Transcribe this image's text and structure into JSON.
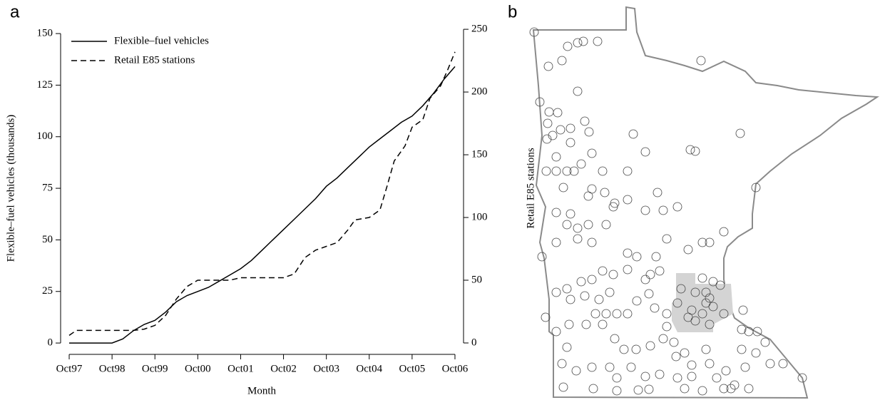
{
  "panel_labels": [
    "a",
    "b"
  ],
  "chart_data": {
    "type": "line",
    "x_label": "Month",
    "y_label": "Flexible–fuel vehicles (thousands)",
    "y2_label": "Retail E85 stations",
    "xlim": [
      -2.4,
      110.4
    ],
    "xticks": [
      {
        "value": 0,
        "label": "Oct97"
      },
      {
        "value": 12,
        "label": "Oct98"
      },
      {
        "value": 24,
        "label": "Oct99"
      },
      {
        "value": 36,
        "label": "Oct00"
      },
      {
        "value": 48,
        "label": "Oct01"
      },
      {
        "value": 60,
        "label": "Oct02"
      },
      {
        "value": 72,
        "label": "Oct03"
      },
      {
        "value": 84,
        "label": "Oct04"
      },
      {
        "value": 96,
        "label": "Oct05"
      },
      {
        "value": 108,
        "label": "Oct06"
      }
    ],
    "ylim": [
      -5.5,
      155.9
    ],
    "yticks": [
      0,
      25,
      50,
      75,
      100,
      125,
      150
    ],
    "y2lim": [
      -9.1,
      256.3
    ],
    "y2ticks": [
      0,
      50,
      100,
      150,
      200,
      250
    ],
    "legend": "top-left",
    "series": [
      {
        "name": "Flexible–fuel vehicles",
        "color": "#000000",
        "style": "solid",
        "x": [
          0,
          3,
          6,
          9,
          12,
          15,
          18,
          21,
          24,
          27,
          30,
          33,
          36,
          39,
          42,
          45,
          48,
          51,
          54,
          57,
          60,
          63,
          66,
          69,
          72,
          75,
          78,
          81,
          84,
          87,
          90,
          93,
          96,
          99,
          102,
          105,
          108
        ],
        "values": [
          0,
          0,
          0,
          0,
          0,
          2,
          6,
          9,
          11,
          15,
          20,
          23,
          25,
          27,
          30,
          33,
          36,
          40,
          45,
          50,
          55,
          60,
          65,
          70,
          76,
          80,
          85,
          90,
          95,
          99,
          103,
          107,
          110,
          115,
          121,
          128,
          134
        ]
      },
      {
        "name": "Retail E85 stations",
        "color": "#000000",
        "style": "dashed",
        "axis": "y2",
        "x": [
          0,
          2,
          6,
          12,
          18,
          21,
          24,
          27,
          30,
          33,
          36,
          39,
          42,
          45,
          48,
          54,
          60,
          63,
          66,
          69,
          72,
          75,
          78,
          80,
          84,
          87,
          89,
          91,
          94,
          96,
          99,
          101,
          104,
          106,
          108
        ],
        "values": [
          6,
          10,
          10,
          10,
          10,
          11,
          14,
          22,
          35,
          45,
          50,
          50,
          50,
          50,
          52,
          52,
          52,
          55,
          68,
          74,
          77,
          80,
          90,
          98,
          100,
          106,
          125,
          145,
          157,
          172,
          178,
          195,
          205,
          218,
          232
        ]
      }
    ]
  }
}
